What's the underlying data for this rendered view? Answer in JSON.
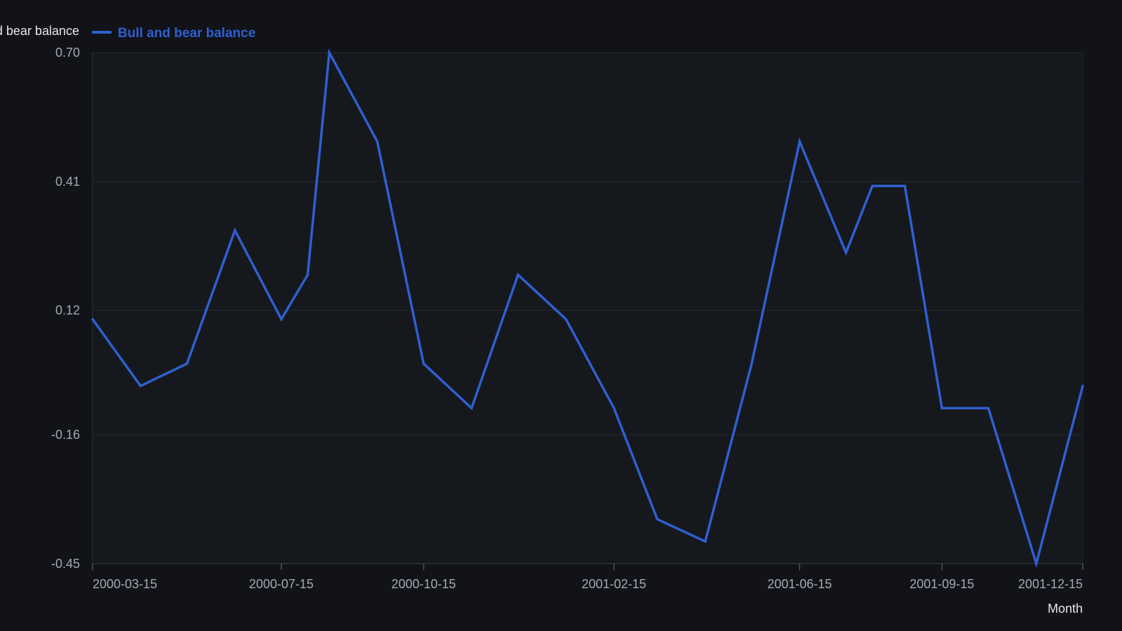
{
  "chart_data": {
    "type": "line",
    "ylabel": "Bull and bear balance",
    "xlabel": "Month",
    "x": [
      "2000-03-15",
      "2000-04-15",
      "2000-05-15",
      "2000-06-15",
      "2000-07-15",
      "2000-08-01",
      "2000-08-15",
      "2000-09-15",
      "2000-10-15",
      "2000-11-15",
      "2000-12-15",
      "2001-01-15",
      "2001-02-15",
      "2001-03-15",
      "2001-04-15",
      "2001-05-15",
      "2001-06-15",
      "2001-07-15",
      "2001-08-01",
      "2001-08-22",
      "2001-09-15",
      "2001-10-15",
      "2001-11-15",
      "2001-12-15"
    ],
    "x_ticks": [
      "2000-03-15",
      "2000-07-15",
      "2000-10-15",
      "2001-02-15",
      "2001-06-15",
      "2001-09-15",
      "2001-12-15"
    ],
    "y_ticks": [
      "0.70",
      "0.41",
      "0.12",
      "-0.16",
      "-0.45"
    ],
    "ylim": [
      -0.45,
      0.7
    ],
    "grid": true,
    "legend_position": "top-left",
    "series": [
      {
        "name": "Bull and bear balance",
        "color": "#2f5fd0",
        "values": [
          0.1,
          -0.05,
          0.0,
          0.3,
          0.1,
          0.2,
          0.7,
          0.5,
          0.0,
          -0.1,
          0.2,
          0.1,
          -0.1,
          -0.35,
          -0.4,
          0.0,
          0.5,
          0.25,
          0.4,
          0.4,
          -0.1,
          -0.1,
          -0.45,
          -0.05
        ]
      }
    ]
  }
}
